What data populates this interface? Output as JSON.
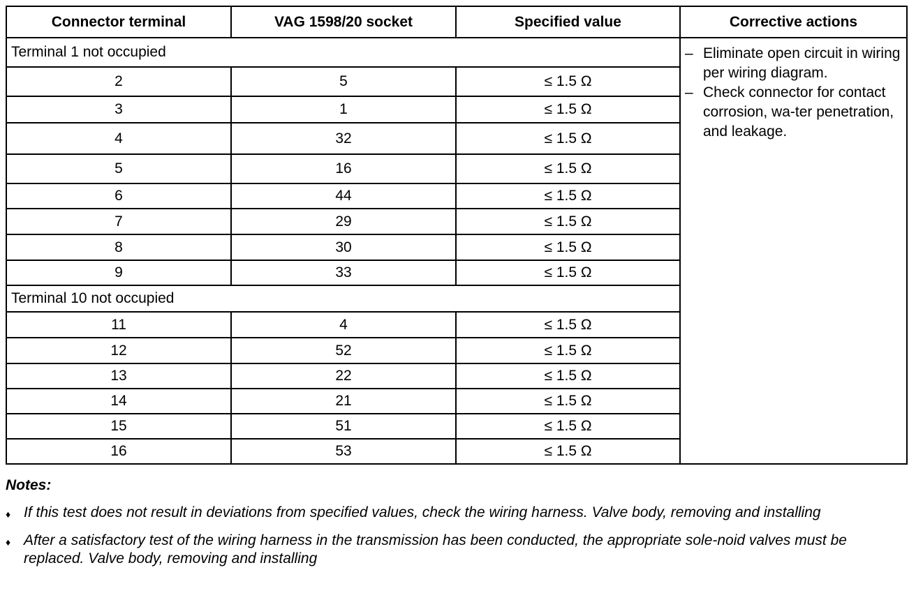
{
  "table": {
    "header": [
      "Connector terminal",
      "VAG 1598/20 socket",
      "Specified value",
      "Corrective actions"
    ],
    "rows": [
      [
        "Terminal 1 not occupied"
      ],
      [
        "2",
        "5",
        "≤ 1.5 Ω"
      ],
      [
        "3",
        "1",
        "≤ 1.5 Ω"
      ],
      [
        "4",
        "32",
        "≤ 1.5 Ω"
      ],
      [
        "5",
        "16",
        "≤ 1.5 Ω"
      ],
      [
        "6",
        "44",
        "≤ 1.5 Ω"
      ],
      [
        "7",
        "29",
        "≤ 1.5 Ω"
      ],
      [
        "8",
        "30",
        "≤ 1.5 Ω"
      ],
      [
        "9",
        "33",
        "≤ 1.5 Ω"
      ],
      [
        "Terminal 10 not occupied"
      ],
      [
        "11",
        "4",
        "≤ 1.5 Ω"
      ],
      [
        "12",
        "52",
        "≤ 1.5 Ω"
      ],
      [
        "13",
        "22",
        "≤ 1.5 Ω"
      ],
      [
        "14",
        "21",
        "≤ 1.5 Ω"
      ],
      [
        "15",
        "51",
        "≤ 1.5 Ω"
      ],
      [
        "16",
        "53",
        "≤ 1.5 Ω"
      ]
    ],
    "corrective_actions": [
      "Eliminate open circuit in wiring per wiring diagram.",
      "Check connector for contact corrosion, wa-ter penetration, and leakage."
    ]
  },
  "notes": {
    "title": "Notes:",
    "items": [
      "If this test does not result in deviations from specified values, check the wiring harness. Valve body, removing and installing",
      "After a satisfactory test of the wiring harness in the transmission has been conducted, the appropriate sole-noid valves must be replaced. Valve body, removing and installing"
    ]
  }
}
